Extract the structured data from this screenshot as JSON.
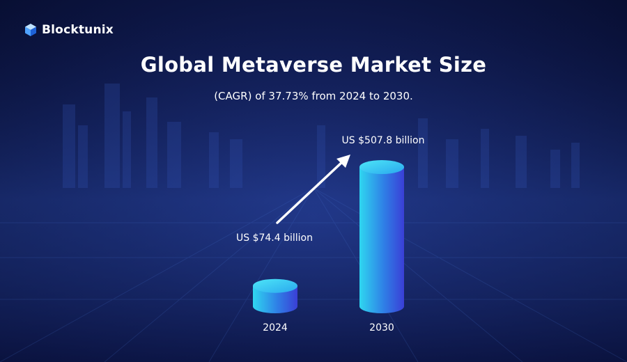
{
  "brand": {
    "name": "Blocktunix",
    "logo_icon": "cube-icon"
  },
  "colors": {
    "background": "#101c55",
    "bar_light": "#2fd6f0",
    "bar_dark": "#3a3fd6",
    "text": "#ffffff"
  },
  "chart_data": {
    "type": "bar",
    "title": "Global Metaverse Market Size",
    "subtitle": "(CAGR) of 37.73% from 2024 to 2030.",
    "categories": [
      "2024",
      "2030"
    ],
    "values": [
      74.4,
      507.8
    ],
    "value_labels": [
      "US $74.4 billion",
      "US $507.8 billion"
    ],
    "unit": "US$ billion",
    "annotation": "growth-arrow",
    "ylim": [
      0,
      507.8
    ],
    "grid": false,
    "legend": "none"
  }
}
